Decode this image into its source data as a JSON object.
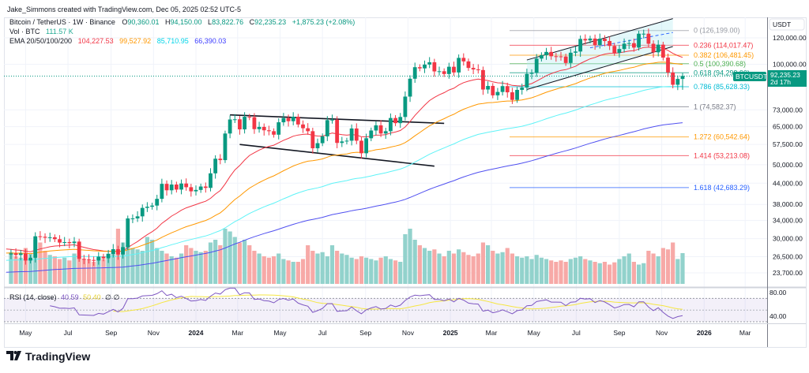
{
  "header": {
    "credit": "Jake_Simmons created with TradingView.com, Dec 05, 2025 02:52 UTC-5"
  },
  "legend": {
    "symbol": "Bitcoin / TetherUS · 1W · Binance",
    "o_label": "O",
    "o": "90,360.01",
    "h_label": "H",
    "h": "94,150.00",
    "l_label": "L",
    "l": "83,822.76",
    "c_label": "C",
    "c": "92,235.23",
    "change": "+1,875.23 (+2.08%)",
    "vol_label": "Vol · BTC",
    "vol": "111.57 K",
    "ema_label": "EMA 20/50/100/200",
    "ema": [
      {
        "value": "104,227.53",
        "color": "#f23645"
      },
      {
        "value": "99,527.92",
        "color": "#ff9800"
      },
      {
        "value": "85,710.95",
        "color": "#00e5ff"
      },
      {
        "value": "66,390.03",
        "color": "#3d3dff"
      }
    ]
  },
  "colors": {
    "up": "#089981",
    "down": "#f23645",
    "vol_up": "#92d2cc",
    "vol_down": "#f7a9a7",
    "rsi": "#7e57c2",
    "rsi_ma": "#f5e642"
  },
  "price_axis": {
    "unit": "USDT",
    "ticks": [
      "120,000.00",
      "100,000.00",
      "73,000.00",
      "65,000.00",
      "57,500.00",
      "50,000.00",
      "44,000.00",
      "38,000.00",
      "34,000.00",
      "30,000.00",
      "26,500.00",
      "23,700.00"
    ]
  },
  "last_price": {
    "symbol": "BTCUSDT",
    "price": "92,235.23",
    "countdown": "2d 17h"
  },
  "fib_levels": [
    {
      "label": "0 (126,199.00)",
      "price": 126199.0,
      "color": "#9598a1"
    },
    {
      "label": "0.236 (114,017.47)",
      "price": 114017.47,
      "color": "#f23645"
    },
    {
      "label": "0.382 (106,481.45)",
      "price": 106481.45,
      "color": "#ff9800"
    },
    {
      "label": "0.5 (100,390.68)",
      "price": 100390.68,
      "color": "#4caf50"
    },
    {
      "label": "0.618 (94,299.90)",
      "price": 94299.9,
      "color": "#089981"
    },
    {
      "label": "0.786 (85,628.33)",
      "price": 85628.33,
      "color": "#00bcd4"
    },
    {
      "label": "1 (74,582.37)",
      "price": 74582.37,
      "color": "#787b86"
    },
    {
      "label": "1.272 (60,542.64)",
      "price": 60542.64,
      "color": "#ff9800"
    },
    {
      "label": "1.414 (53,213.08)",
      "price": 53213.08,
      "color": "#f23645"
    },
    {
      "label": "1.618 (42,683.29)",
      "price": 42683.29,
      "color": "#2962ff"
    }
  ],
  "rsi": {
    "label": "RSI (14, close)",
    "value": "40.59",
    "ma_value": "50.40",
    "extra": "∅ ∅",
    "ticks": [
      "80.00",
      "40.00"
    ]
  },
  "time_axis": [
    {
      "label": "May",
      "date": "2023-05-01"
    },
    {
      "label": "Jul",
      "date": "2023-07-01"
    },
    {
      "label": "Sep",
      "date": "2023-09-01"
    },
    {
      "label": "Nov",
      "date": "2023-11-01"
    },
    {
      "label": "2024",
      "date": "2024-01-01",
      "bold": true
    },
    {
      "label": "Mar",
      "date": "2024-03-01"
    },
    {
      "label": "May",
      "date": "2024-05-01"
    },
    {
      "label": "Jul",
      "date": "2024-07-01"
    },
    {
      "label": "Sep",
      "date": "2024-09-01"
    },
    {
      "label": "Nov",
      "date": "2024-11-01"
    },
    {
      "label": "2025",
      "date": "2025-01-01",
      "bold": true
    },
    {
      "label": "Mar",
      "date": "2025-03-01"
    },
    {
      "label": "May",
      "date": "2025-05-01"
    },
    {
      "label": "Jul",
      "date": "2025-07-01"
    },
    {
      "label": "Sep",
      "date": "2025-09-01"
    },
    {
      "label": "Nov",
      "date": "2025-11-01"
    },
    {
      "label": "2026",
      "date": "2026-01-01",
      "bold": true
    },
    {
      "label": "Mar",
      "date": "2026-03-01"
    }
  ],
  "logo": {
    "text": "TradingView"
  },
  "chart_data": {
    "type": "candlestick",
    "interval": "1W",
    "last_bar_date": "2025-12-01",
    "y_scale": "log",
    "ylim": [
      21000,
      140000
    ],
    "last_bar": {
      "open": 90360.01,
      "high": 94150.0,
      "low": 83822.76,
      "close": 92235.23
    },
    "closes": [
      28000,
      30300,
      27800,
      29300,
      28900,
      26900,
      27100,
      26800,
      27100,
      25800,
      26300,
      30500,
      30400,
      30200,
      30300,
      29900,
      29200,
      29300,
      29100,
      29400,
      26100,
      26000,
      25900,
      25800,
      26500,
      26200,
      27000,
      27900,
      26900,
      28300,
      34500,
      34500,
      35000,
      37100,
      37400,
      37700,
      39500,
      43800,
      41900,
      43600,
      42100,
      43900,
      42800,
      41600,
      42000,
      43000,
      42600,
      47100,
      52100,
      51600,
      62000,
      68300,
      68400,
      63800,
      69600,
      69400,
      63900,
      64900,
      63400,
      63000,
      61500,
      67000,
      69000,
      67500,
      69600,
      66000,
      64300,
      63000,
      56000,
      58000,
      60800,
      68000,
      68200,
      58100,
      58700,
      59000,
      64200,
      59000,
      54100,
      60000,
      63300,
      65600,
      62000,
      63000,
      69000,
      66600,
      69500,
      80000,
      90500,
      98000,
      97200,
      99800,
      101400,
      95200,
      95300,
      93500,
      98300,
      94500,
      104500,
      102000,
      97500,
      96500,
      96100,
      84000,
      86100,
      80700,
      82600,
      86000,
      82400,
      78200,
      83800,
      85100,
      93600,
      94300,
      104000,
      106500,
      108900,
      105700,
      105600,
      105500,
      100900,
      108300,
      109200,
      119100,
      117900,
      119400,
      114200,
      119300,
      117400,
      113500,
      108200,
      111100,
      115300,
      115700,
      112200,
      123500,
      123500,
      115200,
      108600,
      114500,
      104700,
      94500,
      86800,
      90360.01,
      92235.23
    ],
    "volume_k": [
      150,
      170,
      140,
      130,
      120,
      110,
      115,
      100,
      95,
      130,
      110,
      160,
      150,
      120,
      105,
      100,
      90,
      95,
      85,
      110,
      100,
      90,
      85,
      80,
      95,
      90,
      110,
      120,
      200,
      150,
      140,
      130,
      125,
      120,
      170,
      160,
      130,
      120,
      110,
      100,
      95,
      110,
      140,
      130,
      120,
      115,
      120,
      150,
      160,
      140,
      200,
      190,
      170,
      150,
      160,
      140,
      120,
      110,
      100,
      95,
      100,
      110,
      90,
      85,
      80,
      80,
      90,
      140,
      120,
      110,
      115,
      100,
      140,
      120,
      110,
      105,
      95,
      90,
      100,
      95,
      90,
      85,
      95,
      100,
      90,
      85,
      80,
      180,
      200,
      160,
      140,
      130,
      120,
      125,
      110,
      100,
      120,
      110,
      125,
      115,
      105,
      100,
      110,
      150,
      140,
      120,
      110,
      115,
      130,
      110,
      100,
      95,
      100,
      90,
      105,
      95,
      90,
      85,
      80,
      85,
      80,
      90,
      95,
      100,
      90,
      85,
      80,
      75,
      80,
      70,
      78,
      90,
      100,
      110,
      80,
      70,
      75,
      120,
      110,
      100,
      130,
      125,
      150,
      90,
      111.57
    ],
    "trendlines": [
      {
        "name": "descending-channel-top",
        "from": {
          "date": "2024-02-19",
          "price": 70500
        },
        "to": {
          "date": "2024-12-23",
          "price": 66500
        }
      },
      {
        "name": "descending-channel-bottom",
        "from": {
          "date": "2024-03-04",
          "price": 57500
        },
        "to": {
          "date": "2024-12-09",
          "price": 49500
        }
      },
      {
        "name": "ascending-channel-top",
        "from": {
          "date": "2025-04-21",
          "price": 103000
        },
        "to": {
          "date": "2025-11-17",
          "price": 137000
        }
      },
      {
        "name": "ascending-channel-bottom",
        "from": {
          "date": "2025-04-21",
          "price": 84000
        },
        "to": {
          "date": "2025-11-17",
          "price": 113000
        }
      },
      {
        "name": "ascending-channel-mid",
        "from": {
          "date": "2025-07-21",
          "price": 112000
        },
        "to": {
          "date": "2025-11-17",
          "price": 124500
        }
      }
    ]
  }
}
